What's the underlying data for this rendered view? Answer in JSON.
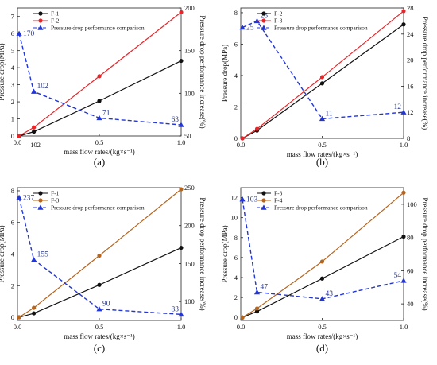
{
  "colors": {
    "black": "#111111",
    "red": "#e8262a",
    "brown": "#b5651d",
    "blue": "#2236d6"
  },
  "chart_data": [
    {
      "type": "line",
      "panel_label": "(a)",
      "xlabel": "mass flow rates/(kg×s⁻¹)",
      "ylabel": "Pressure drop(MPa)",
      "ylabel_right": "Pressure drop performance increase(%)",
      "xlim": [
        0,
        1.0
      ],
      "xticks": [
        "0.0",
        "0.5",
        "1.0"
      ],
      "ylim": [
        0,
        7.5
      ],
      "yticks": [
        0,
        1,
        2,
        3,
        4,
        5,
        6,
        7
      ],
      "ylim_right": [
        50,
        200
      ],
      "yticks_right": [
        50,
        100,
        150,
        200
      ],
      "extra_x_label": "102",
      "series": [
        {
          "name": "F-1",
          "color": "black",
          "axis": "left",
          "x": [
            0.01,
            0.1,
            0.5,
            1.0
          ],
          "y": [
            0.0,
            0.25,
            2.05,
            4.4
          ]
        },
        {
          "name": "F-2",
          "color": "red",
          "axis": "left",
          "x": [
            0.01,
            0.1,
            0.5,
            1.0
          ],
          "y": [
            0.0,
            0.5,
            3.5,
            7.25
          ]
        },
        {
          "name": "Pressure drop performance comparison",
          "color": "blue",
          "axis": "right",
          "dashed": true,
          "x": [
            0.01,
            0.1,
            0.5,
            1.0
          ],
          "y": [
            170,
            102,
            71,
            63
          ],
          "labels": [
            "170",
            "102",
            "71",
            "63"
          ]
        }
      ]
    },
    {
      "type": "line",
      "panel_label": "(b)",
      "xlabel": "mass flow rates/(kg×s⁻¹)",
      "ylabel": "Pressure drop(MPa)",
      "ylabel_right": "Pressure drop performance increase(%)",
      "xlim": [
        0,
        1.0
      ],
      "xticks": [
        "0.0",
        "0.5",
        "1.0"
      ],
      "ylim": [
        0,
        8.3
      ],
      "yticks": [
        0,
        2,
        4,
        6,
        8
      ],
      "ylim_right": [
        8,
        28
      ],
      "yticks_right": [
        8,
        12,
        16,
        20,
        24,
        28
      ],
      "series": [
        {
          "name": "F-2",
          "color": "black",
          "axis": "left",
          "x": [
            0.01,
            0.1,
            0.5,
            1.0
          ],
          "y": [
            0.0,
            0.5,
            3.5,
            7.25
          ]
        },
        {
          "name": "F-3",
          "color": "red",
          "axis": "left",
          "x": [
            0.01,
            0.1,
            0.5,
            1.0
          ],
          "y": [
            0.0,
            0.6,
            3.9,
            8.1
          ]
        },
        {
          "name": "Pressure drop performance comparison",
          "color": "blue",
          "axis": "right",
          "dashed": true,
          "x": [
            0.01,
            0.1,
            0.5,
            1.0
          ],
          "y": [
            25,
            26,
            11,
            12
          ],
          "labels": [
            "25",
            "26",
            "11",
            "12"
          ]
        }
      ]
    },
    {
      "type": "line",
      "panel_label": "(c)",
      "xlabel": "mass flow rates/(kg×s⁻¹)",
      "ylabel": "Pressure drop(MPa)",
      "ylabel_right": "Pressure drop performance increase(%)",
      "xlim": [
        0,
        1.0
      ],
      "xticks": [
        "0.0",
        "0.5",
        "1.0"
      ],
      "ylim": [
        -0.2,
        8.2
      ],
      "yticks": [
        0,
        2,
        4,
        6,
        8
      ],
      "ylim_right": [
        75,
        250
      ],
      "yticks_right": [
        100,
        150,
        200,
        250
      ],
      "series": [
        {
          "name": "F-1",
          "color": "black",
          "axis": "left",
          "x": [
            0.01,
            0.1,
            0.5,
            1.0
          ],
          "y": [
            0.0,
            0.25,
            2.05,
            4.4
          ]
        },
        {
          "name": "F-3",
          "color": "brown",
          "axis": "left",
          "x": [
            0.01,
            0.1,
            0.5,
            1.0
          ],
          "y": [
            0.0,
            0.6,
            3.9,
            8.1
          ]
        },
        {
          "name": "Pressure drop performance comparison",
          "color": "blue",
          "axis": "right",
          "dashed": true,
          "x": [
            0.01,
            0.1,
            0.5,
            1.0
          ],
          "y": [
            237,
            155,
            90,
            83
          ],
          "labels": [
            "237",
            "155",
            "90",
            "83"
          ]
        }
      ]
    },
    {
      "type": "line",
      "panel_label": "(d)",
      "xlabel": "mass flow rates/(kg×s⁻¹)",
      "ylabel": "Pressure drop(MPa)",
      "ylabel_right": "Pressure drop performance increase(%)",
      "xlim": [
        0,
        1.0
      ],
      "xticks": [
        "0.0",
        "0.5",
        "1.0"
      ],
      "ylim": [
        -0.3,
        13
      ],
      "yticks": [
        0,
        2,
        4,
        6,
        8,
        10,
        12
      ],
      "ylim_right": [
        30,
        110
      ],
      "yticks_right": [
        40,
        60,
        80,
        100
      ],
      "series": [
        {
          "name": "F-3",
          "color": "black",
          "axis": "left",
          "x": [
            0.01,
            0.1,
            0.5,
            1.0
          ],
          "y": [
            0.0,
            0.6,
            3.9,
            8.1
          ]
        },
        {
          "name": "F-4",
          "color": "brown",
          "axis": "left",
          "x": [
            0.01,
            0.1,
            0.5,
            1.0
          ],
          "y": [
            0.0,
            0.9,
            5.6,
            12.5
          ]
        },
        {
          "name": "Pressure drop performance comparison",
          "color": "blue",
          "axis": "right",
          "dashed": true,
          "x": [
            0.01,
            0.1,
            0.5,
            1.0
          ],
          "y": [
            103,
            47,
            43,
            54
          ],
          "labels": [
            "103",
            "47",
            "43",
            "54"
          ]
        }
      ]
    }
  ]
}
